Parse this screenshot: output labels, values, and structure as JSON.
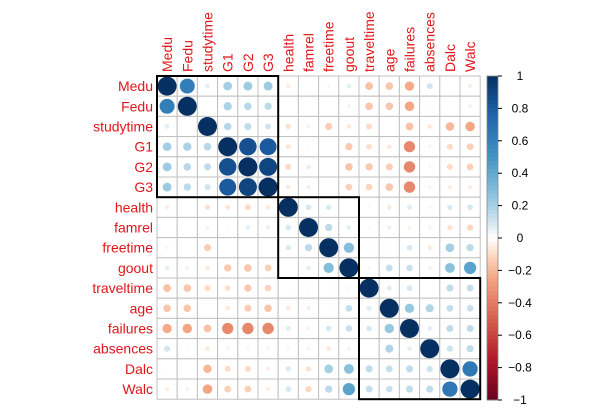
{
  "chart_data": {
    "type": "heatmap",
    "variables": [
      "Medu",
      "Fedu",
      "studytime",
      "G1",
      "G2",
      "G3",
      "health",
      "famrel",
      "freetime",
      "goout",
      "traveltime",
      "age",
      "failures",
      "absences",
      "Dalc",
      "Walc"
    ],
    "matrix": [
      [
        1,
        0.62,
        0.06,
        0.21,
        0.22,
        0.22,
        -0.05,
        0,
        0.03,
        0.06,
        -0.17,
        -0.16,
        -0.24,
        0.1,
        0.01,
        -0.05
      ],
      [
        0.62,
        1,
        0.01,
        0.19,
        0.16,
        0.15,
        0.01,
        -0.01,
        -0.01,
        0.04,
        -0.16,
        -0.16,
        -0.25,
        0.02,
        0,
        0.04
      ],
      [
        0.06,
        0.01,
        1,
        0.16,
        0.14,
        0.1,
        -0.08,
        0.04,
        -0.14,
        -0.06,
        -0.1,
        -0.01,
        -0.17,
        -0.06,
        -0.2,
        -0.25
      ],
      [
        0.21,
        0.19,
        0.16,
        1,
        0.85,
        0.8,
        -0.07,
        0.02,
        0.01,
        -0.15,
        -0.09,
        -0.06,
        -0.35,
        -0.03,
        -0.1,
        -0.13
      ],
      [
        0.22,
        0.16,
        0.14,
        0.85,
        1,
        0.9,
        -0.1,
        0.06,
        -0.01,
        -0.16,
        -0.15,
        -0.14,
        -0.36,
        -0.03,
        -0.1,
        -0.13
      ],
      [
        0.22,
        0.15,
        0.1,
        0.8,
        0.9,
        1,
        -0.06,
        0.05,
        0.01,
        -0.13,
        -0.12,
        -0.16,
        -0.36,
        0.03,
        -0.05,
        -0.05
      ],
      [
        -0.05,
        0.01,
        -0.08,
        -0.07,
        -0.1,
        -0.06,
        1,
        0.09,
        0.08,
        -0.01,
        -0.02,
        -0.06,
        0.07,
        -0.03,
        0.08,
        0.09
      ],
      [
        0,
        -0.01,
        0.04,
        0.02,
        0.06,
        0.05,
        0.09,
        1,
        0.15,
        0.06,
        -0.02,
        0.05,
        -0.04,
        -0.04,
        -0.08,
        -0.11
      ],
      [
        0.03,
        -0.01,
        -0.14,
        0.01,
        -0.01,
        0.01,
        0.08,
        0.15,
        1,
        0.29,
        -0.02,
        0.02,
        0.09,
        -0.06,
        0.21,
        0.15
      ],
      [
        0.06,
        0.04,
        -0.06,
        -0.15,
        -0.16,
        -0.13,
        -0.01,
        0.06,
        0.29,
        1,
        0.03,
        0.13,
        0.12,
        0.04,
        0.27,
        0.42
      ],
      [
        -0.17,
        -0.16,
        -0.1,
        -0.09,
        -0.15,
        -0.12,
        -0.02,
        -0.02,
        -0.02,
        0.03,
        1,
        0.07,
        0.09,
        -0.01,
        0.14,
        0.13
      ],
      [
        -0.16,
        -0.16,
        -0.01,
        -0.06,
        -0.14,
        -0.16,
        -0.06,
        0.05,
        0.02,
        0.13,
        0.07,
        1,
        0.24,
        0.18,
        0.13,
        0.12
      ],
      [
        -0.24,
        -0.25,
        -0.17,
        -0.35,
        -0.36,
        -0.36,
        0.07,
        -0.04,
        0.09,
        0.12,
        0.09,
        0.24,
        1,
        0.06,
        0.14,
        0.14
      ],
      [
        0.1,
        0.02,
        -0.06,
        -0.03,
        -0.03,
        0.03,
        -0.03,
        -0.04,
        -0.06,
        0.04,
        -0.01,
        0.18,
        0.06,
        1,
        0.11,
        0.14
      ],
      [
        0.01,
        0,
        -0.2,
        -0.1,
        -0.1,
        -0.05,
        0.08,
        -0.08,
        0.21,
        0.27,
        0.14,
        0.13,
        0.14,
        0.11,
        1,
        0.65
      ],
      [
        -0.05,
        0.04,
        -0.25,
        -0.13,
        -0.13,
        -0.05,
        0.09,
        -0.11,
        0.15,
        0.42,
        0.13,
        0.12,
        0.14,
        0.14,
        0.65,
        1
      ]
    ],
    "clusters": [
      [
        0,
        5
      ],
      [
        6,
        9
      ],
      [
        10,
        15
      ]
    ],
    "color_scale": {
      "min": -1,
      "max": 1,
      "low_color": "#67001f",
      "mid_color": "#ffffff",
      "high_color": "#053061"
    },
    "colorbar_ticks": [
      "1",
      "0.8",
      "0.6",
      "0.4",
      "0.2",
      "0",
      "−0.2",
      "−0.4",
      "−0.6",
      "−0.8",
      "−1"
    ],
    "label_color": "#e0161b",
    "grid_color": "#c0c0c0",
    "cluster_box_color": "#000000"
  }
}
